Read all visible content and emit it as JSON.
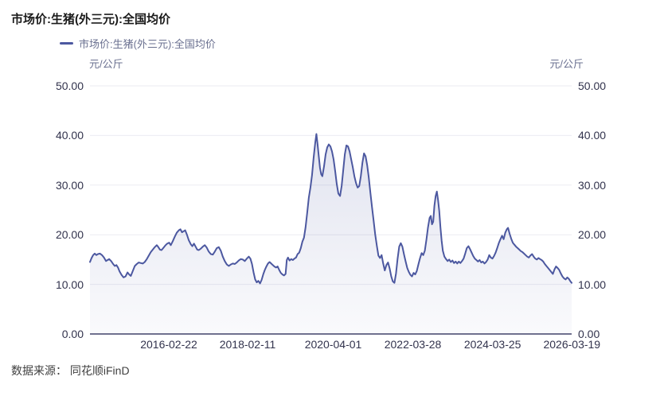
{
  "page": {
    "title": "市场价:生猪(外三元):全国均价"
  },
  "legend": {
    "label": "市场价:生猪(外三元):全国均价"
  },
  "footer": {
    "source": "数据来源： 同花顺iFinD"
  },
  "chart_data": {
    "type": "area",
    "title": "市场价:生猪(外三元):全国均价",
    "unit": "元/公斤",
    "ylabel_left": "元/公斤",
    "ylabel_right": "元/公斤",
    "ylim": [
      0,
      50
    ],
    "grid": true,
    "legend_position": "top-left",
    "y_ticks": [
      "50.00",
      "40.00",
      "30.00",
      "20.00",
      "10.00",
      "0.00"
    ],
    "x_ticks": [
      "2016-02-22",
      "2018-02-11",
      "2020-04-01",
      "2022-03-28",
      "2024-03-25",
      "2026-03-19"
    ],
    "colors": {
      "line": "#4c58a0",
      "grid": "#ebebf2",
      "axis": "#40426a",
      "tick_text": "#32334d",
      "muted_text": "#6a7090"
    },
    "series": [
      {
        "name": "市场价:生猪(外三元):全国均价",
        "x_unit": "decimal_year",
        "y_unit": "元/公斤",
        "points": [
          [
            2014.17,
            14.5
          ],
          [
            2014.21,
            15.3
          ],
          [
            2014.25,
            15.9
          ],
          [
            2014.29,
            16.2
          ],
          [
            2014.33,
            15.9
          ],
          [
            2014.37,
            16.1
          ],
          [
            2014.42,
            16.2
          ],
          [
            2014.47,
            15.9
          ],
          [
            2014.52,
            15.4
          ],
          [
            2014.57,
            14.7
          ],
          [
            2014.61,
            14.9
          ],
          [
            2014.65,
            15.1
          ],
          [
            2014.7,
            14.7
          ],
          [
            2014.75,
            14.1
          ],
          [
            2014.79,
            13.7
          ],
          [
            2014.83,
            13.9
          ],
          [
            2014.87,
            13.4
          ],
          [
            2014.91,
            12.6
          ],
          [
            2014.96,
            11.9
          ],
          [
            2015.01,
            11.4
          ],
          [
            2015.06,
            11.6
          ],
          [
            2015.11,
            12.4
          ],
          [
            2015.15,
            12.0
          ],
          [
            2015.19,
            11.7
          ],
          [
            2015.24,
            12.7
          ],
          [
            2015.29,
            13.7
          ],
          [
            2015.34,
            14.1
          ],
          [
            2015.39,
            14.4
          ],
          [
            2015.44,
            14.3
          ],
          [
            2015.49,
            14.2
          ],
          [
            2015.54,
            14.5
          ],
          [
            2015.59,
            15.1
          ],
          [
            2015.64,
            15.8
          ],
          [
            2015.69,
            16.5
          ],
          [
            2015.74,
            17.0
          ],
          [
            2015.79,
            17.5
          ],
          [
            2015.84,
            17.9
          ],
          [
            2015.88,
            17.5
          ],
          [
            2015.92,
            17.0
          ],
          [
            2015.96,
            16.9
          ],
          [
            2016.01,
            17.4
          ],
          [
            2016.06,
            17.9
          ],
          [
            2016.1,
            18.2
          ],
          [
            2016.15,
            18.4
          ],
          [
            2016.19,
            17.9
          ],
          [
            2016.24,
            18.7
          ],
          [
            2016.29,
            19.6
          ],
          [
            2016.34,
            20.4
          ],
          [
            2016.39,
            20.9
          ],
          [
            2016.43,
            21.1
          ],
          [
            2016.47,
            20.5
          ],
          [
            2016.51,
            20.7
          ],
          [
            2016.55,
            20.9
          ],
          [
            2016.59,
            20.1
          ],
          [
            2016.64,
            18.9
          ],
          [
            2016.69,
            18.1
          ],
          [
            2016.73,
            17.7
          ],
          [
            2016.77,
            18.2
          ],
          [
            2016.81,
            17.6
          ],
          [
            2016.85,
            17.0
          ],
          [
            2016.89,
            16.9
          ],
          [
            2016.94,
            17.2
          ],
          [
            2016.99,
            17.6
          ],
          [
            2017.04,
            17.9
          ],
          [
            2017.09,
            17.4
          ],
          [
            2017.14,
            16.6
          ],
          [
            2017.19,
            16.1
          ],
          [
            2017.24,
            16.0
          ],
          [
            2017.29,
            16.6
          ],
          [
            2017.34,
            17.3
          ],
          [
            2017.39,
            17.5
          ],
          [
            2017.44,
            16.8
          ],
          [
            2017.49,
            15.6
          ],
          [
            2017.54,
            14.7
          ],
          [
            2017.59,
            14.0
          ],
          [
            2017.64,
            13.7
          ],
          [
            2017.69,
            14.0
          ],
          [
            2017.74,
            14.2
          ],
          [
            2017.79,
            14.1
          ],
          [
            2017.84,
            14.4
          ],
          [
            2017.89,
            14.8
          ],
          [
            2017.94,
            15.1
          ],
          [
            2017.99,
            15.0
          ],
          [
            2018.04,
            14.7
          ],
          [
            2018.09,
            15.2
          ],
          [
            2018.14,
            15.6
          ],
          [
            2018.18,
            15.2
          ],
          [
            2018.22,
            14.1
          ],
          [
            2018.26,
            12.4
          ],
          [
            2018.3,
            11.0
          ],
          [
            2018.34,
            10.4
          ],
          [
            2018.38,
            10.7
          ],
          [
            2018.42,
            10.2
          ],
          [
            2018.46,
            10.9
          ],
          [
            2018.5,
            12.0
          ],
          [
            2018.54,
            12.9
          ],
          [
            2018.58,
            13.6
          ],
          [
            2018.62,
            14.2
          ],
          [
            2018.66,
            14.5
          ],
          [
            2018.7,
            14.2
          ],
          [
            2018.74,
            13.9
          ],
          [
            2018.78,
            13.6
          ],
          [
            2018.82,
            13.4
          ],
          [
            2018.86,
            13.6
          ],
          [
            2018.9,
            12.9
          ],
          [
            2018.94,
            12.3
          ],
          [
            2018.98,
            12.0
          ],
          [
            2019.02,
            11.8
          ],
          [
            2019.06,
            12.1
          ],
          [
            2019.09,
            14.9
          ],
          [
            2019.12,
            15.4
          ],
          [
            2019.16,
            14.8
          ],
          [
            2019.2,
            15.1
          ],
          [
            2019.24,
            14.9
          ],
          [
            2019.28,
            15.2
          ],
          [
            2019.32,
            15.4
          ],
          [
            2019.36,
            16.1
          ],
          [
            2019.4,
            16.4
          ],
          [
            2019.44,
            17.3
          ],
          [
            2019.48,
            18.6
          ],
          [
            2019.52,
            19.4
          ],
          [
            2019.56,
            21.5
          ],
          [
            2019.6,
            24.5
          ],
          [
            2019.64,
            27.5
          ],
          [
            2019.68,
            29.5
          ],
          [
            2019.72,
            32.0
          ],
          [
            2019.76,
            35.5
          ],
          [
            2019.8,
            38.5
          ],
          [
            2019.83,
            40.3
          ],
          [
            2019.86,
            38.2
          ],
          [
            2019.89,
            35.8
          ],
          [
            2019.92,
            33.5
          ],
          [
            2019.95,
            32.2
          ],
          [
            2019.98,
            31.8
          ],
          [
            2020.02,
            33.8
          ],
          [
            2020.06,
            36.2
          ],
          [
            2020.1,
            37.6
          ],
          [
            2020.14,
            38.2
          ],
          [
            2020.18,
            37.8
          ],
          [
            2020.22,
            36.8
          ],
          [
            2020.26,
            35.2
          ],
          [
            2020.3,
            32.8
          ],
          [
            2020.34,
            30.2
          ],
          [
            2020.38,
            28.3
          ],
          [
            2020.42,
            27.8
          ],
          [
            2020.46,
            29.8
          ],
          [
            2020.5,
            33.0
          ],
          [
            2020.54,
            36.2
          ],
          [
            2020.58,
            38.0
          ],
          [
            2020.62,
            37.8
          ],
          [
            2020.66,
            36.8
          ],
          [
            2020.7,
            35.2
          ],
          [
            2020.74,
            33.6
          ],
          [
            2020.78,
            31.8
          ],
          [
            2020.82,
            30.4
          ],
          [
            2020.86,
            29.5
          ],
          [
            2020.9,
            29.8
          ],
          [
            2020.94,
            31.8
          ],
          [
            2020.98,
            34.5
          ],
          [
            2021.02,
            36.4
          ],
          [
            2021.06,
            35.8
          ],
          [
            2021.1,
            34.0
          ],
          [
            2021.14,
            31.5
          ],
          [
            2021.18,
            28.5
          ],
          [
            2021.22,
            25.5
          ],
          [
            2021.26,
            22.8
          ],
          [
            2021.3,
            20.0
          ],
          [
            2021.34,
            17.8
          ],
          [
            2021.38,
            15.8
          ],
          [
            2021.42,
            15.3
          ],
          [
            2021.46,
            15.9
          ],
          [
            2021.5,
            14.2
          ],
          [
            2021.54,
            12.8
          ],
          [
            2021.58,
            13.9
          ],
          [
            2021.62,
            14.4
          ],
          [
            2021.66,
            13.2
          ],
          [
            2021.7,
            11.6
          ],
          [
            2021.74,
            10.6
          ],
          [
            2021.78,
            10.3
          ],
          [
            2021.82,
            12.2
          ],
          [
            2021.86,
            15.2
          ],
          [
            2021.9,
            17.6
          ],
          [
            2021.94,
            18.3
          ],
          [
            2021.98,
            17.6
          ],
          [
            2022.02,
            16.0
          ],
          [
            2022.06,
            14.6
          ],
          [
            2022.1,
            13.3
          ],
          [
            2022.14,
            12.5
          ],
          [
            2022.18,
            11.9
          ],
          [
            2022.22,
            11.6
          ],
          [
            2022.26,
            12.3
          ],
          [
            2022.3,
            12.0
          ],
          [
            2022.34,
            12.7
          ],
          [
            2022.38,
            14.0
          ],
          [
            2022.42,
            15.3
          ],
          [
            2022.46,
            16.3
          ],
          [
            2022.5,
            15.9
          ],
          [
            2022.54,
            16.8
          ],
          [
            2022.58,
            19.0
          ],
          [
            2022.62,
            21.5
          ],
          [
            2022.66,
            23.4
          ],
          [
            2022.69,
            23.8
          ],
          [
            2022.72,
            22.1
          ],
          [
            2022.75,
            22.6
          ],
          [
            2022.78,
            25.8
          ],
          [
            2022.81,
            27.8
          ],
          [
            2022.84,
            28.7
          ],
          [
            2022.87,
            27.0
          ],
          [
            2022.9,
            24.8
          ],
          [
            2022.93,
            21.5
          ],
          [
            2022.96,
            18.8
          ],
          [
            2022.99,
            16.8
          ],
          [
            2023.03,
            15.6
          ],
          [
            2023.07,
            15.1
          ],
          [
            2023.11,
            14.7
          ],
          [
            2023.15,
            15.0
          ],
          [
            2023.19,
            14.5
          ],
          [
            2023.23,
            14.8
          ],
          [
            2023.27,
            14.3
          ],
          [
            2023.31,
            14.6
          ],
          [
            2023.35,
            14.2
          ],
          [
            2023.39,
            14.6
          ],
          [
            2023.43,
            14.3
          ],
          [
            2023.47,
            14.7
          ],
          [
            2023.51,
            15.2
          ],
          [
            2023.55,
            16.2
          ],
          [
            2023.59,
            17.3
          ],
          [
            2023.63,
            17.7
          ],
          [
            2023.67,
            17.1
          ],
          [
            2023.71,
            16.4
          ],
          [
            2023.75,
            15.7
          ],
          [
            2023.79,
            15.2
          ],
          [
            2023.83,
            14.9
          ],
          [
            2023.87,
            14.6
          ],
          [
            2023.91,
            14.9
          ],
          [
            2023.95,
            14.4
          ],
          [
            2023.99,
            14.6
          ],
          [
            2024.03,
            14.2
          ],
          [
            2024.07,
            14.5
          ],
          [
            2024.11,
            15.0
          ],
          [
            2024.15,
            15.9
          ],
          [
            2024.19,
            15.4
          ],
          [
            2024.23,
            15.2
          ],
          [
            2024.27,
            15.7
          ],
          [
            2024.31,
            16.4
          ],
          [
            2024.35,
            17.3
          ],
          [
            2024.39,
            18.3
          ],
          [
            2024.43,
            19.1
          ],
          [
            2024.47,
            19.8
          ],
          [
            2024.51,
            19.1
          ],
          [
            2024.55,
            20.4
          ],
          [
            2024.59,
            21.1
          ],
          [
            2024.62,
            21.4
          ],
          [
            2024.66,
            20.2
          ],
          [
            2024.7,
            19.2
          ],
          [
            2024.74,
            18.4
          ],
          [
            2024.78,
            18.0
          ],
          [
            2024.82,
            17.6
          ],
          [
            2024.86,
            17.3
          ],
          [
            2024.9,
            17.0
          ],
          [
            2024.94,
            16.7
          ],
          [
            2024.98,
            16.5
          ],
          [
            2025.02,
            16.2
          ],
          [
            2025.06,
            15.9
          ],
          [
            2025.1,
            15.6
          ],
          [
            2025.14,
            15.4
          ],
          [
            2025.18,
            15.8
          ],
          [
            2025.22,
            16.1
          ],
          [
            2025.26,
            15.6
          ],
          [
            2025.3,
            15.2
          ],
          [
            2025.34,
            15.0
          ],
          [
            2025.38,
            15.3
          ],
          [
            2025.42,
            15.1
          ],
          [
            2025.46,
            14.9
          ],
          [
            2025.5,
            14.6
          ],
          [
            2025.54,
            14.1
          ],
          [
            2025.58,
            13.7
          ],
          [
            2025.62,
            13.3
          ],
          [
            2025.66,
            12.9
          ],
          [
            2025.7,
            12.5
          ],
          [
            2025.74,
            12.1
          ],
          [
            2025.78,
            13.0
          ],
          [
            2025.82,
            13.6
          ],
          [
            2025.86,
            13.3
          ],
          [
            2025.9,
            12.9
          ],
          [
            2025.94,
            12.2
          ],
          [
            2025.98,
            11.6
          ],
          [
            2026.02,
            11.2
          ],
          [
            2026.06,
            11.0
          ],
          [
            2026.1,
            11.4
          ],
          [
            2026.14,
            11.1
          ],
          [
            2026.18,
            10.6
          ],
          [
            2026.21,
            10.3
          ]
        ]
      }
    ]
  }
}
